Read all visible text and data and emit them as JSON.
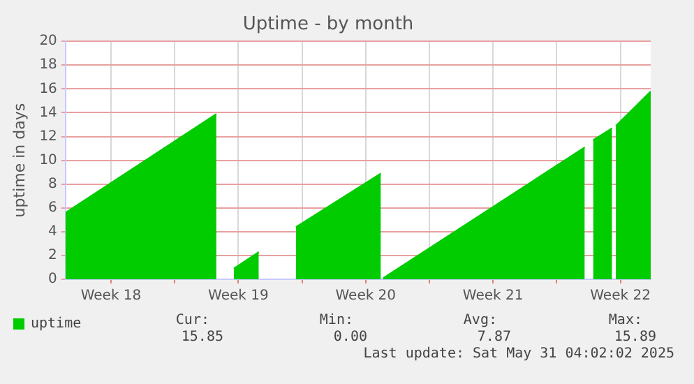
{
  "chart_data": {
    "type": "area",
    "title": "Uptime - by month",
    "ylabel": "uptime in days",
    "x": [
      "2025-04-29T00:00",
      "2025-05-07T07:00",
      "2025-05-07T19:00",
      "2025-05-08T06:00",
      "2025-05-09T15:00",
      "2025-05-10T14:00",
      "2025-05-11T16:00",
      "2025-05-16T08:00",
      "2025-05-16T10:00",
      "2025-05-16T11:00",
      "2025-05-27T13:00",
      "2025-05-27T19:00",
      "2025-05-28T00:00",
      "2025-05-29T01:00",
      "2025-05-29T04:00",
      "2025-05-29T06:00",
      "2025-05-31T04:00"
    ],
    "series": [
      {
        "name": "uptime",
        "color": "#00cc00",
        "values": [
          5.6,
          13.9,
          null,
          0.9,
          2.3,
          null,
          4.4,
          8.9,
          null,
          0.1,
          11.1,
          null,
          11.7,
          12.7,
          null,
          12.9,
          15.8
        ]
      }
    ],
    "xlim": [
      "2025-04-29T00:00",
      "2025-05-31T04:00"
    ],
    "xticks": [
      {
        "value": "2025-05-01T12:00",
        "label": "Week 18"
      },
      {
        "value": "2025-05-05",
        "label": null
      },
      {
        "value": "2025-05-08T12:00",
        "label": "Week 19"
      },
      {
        "value": "2025-05-12",
        "label": null
      },
      {
        "value": "2025-05-15T12:00",
        "label": "Week 20"
      },
      {
        "value": "2025-05-19",
        "label": null
      },
      {
        "value": "2025-05-22T12:00",
        "label": "Week 21"
      },
      {
        "value": "2025-05-26",
        "label": null
      },
      {
        "value": "2025-05-29T12:00",
        "label": "Week 22"
      }
    ],
    "ylim": [
      0,
      20
    ],
    "yticks": [
      0,
      2,
      4,
      6,
      8,
      10,
      12,
      14,
      16,
      18,
      20
    ],
    "grid": true,
    "legend": "bottom left",
    "annotations": [
      "Cur:",
      "15.85",
      "Min:",
      "0.00",
      "Avg:",
      "7.87",
      "Max:",
      "15.89",
      "Last update: Sat May 31 04:02:02 2025"
    ]
  }
}
